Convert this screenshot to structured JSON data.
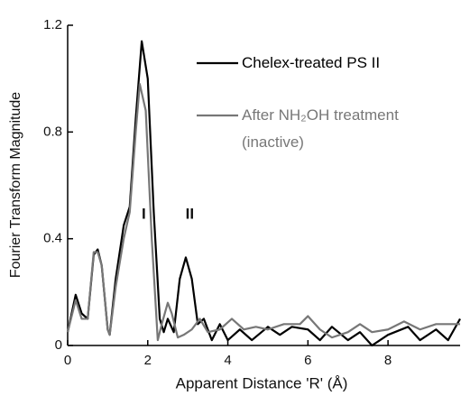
{
  "chart_data": {
    "type": "line",
    "x_label": "Apparent Distance 'R' (Å)",
    "y_label": "Fourier Transform Magnitude",
    "xlim": [
      0,
      9.8
    ],
    "ylim": [
      0,
      1.2
    ],
    "xticks": [
      0,
      2,
      4,
      6,
      8
    ],
    "yticks": [
      0,
      0.4,
      0.8,
      1.2
    ],
    "annotations": [
      "I",
      "II"
    ],
    "series": [
      {
        "name": "Chelex-treated PS II",
        "color": "#000000",
        "x": [
          0,
          0.2,
          0.35,
          0.5,
          0.65,
          0.75,
          0.85,
          1.0,
          1.05,
          1.2,
          1.4,
          1.55,
          1.7,
          1.85,
          2.0,
          2.15,
          2.3,
          2.4,
          2.5,
          2.65,
          2.8,
          2.95,
          3.1,
          3.25,
          3.4,
          3.6,
          3.8,
          4.0,
          4.3,
          4.6,
          5.0,
          5.3,
          5.6,
          6.0,
          6.3,
          6.6,
          7.0,
          7.3,
          7.6,
          8.0,
          8.5,
          8.8,
          9.2,
          9.5,
          9.8
        ],
        "values": [
          0.05,
          0.19,
          0.12,
          0.1,
          0.34,
          0.36,
          0.3,
          0.06,
          0.04,
          0.25,
          0.45,
          0.52,
          0.85,
          1.14,
          1.0,
          0.5,
          0.1,
          0.05,
          0.1,
          0.05,
          0.25,
          0.33,
          0.25,
          0.08,
          0.1,
          0.02,
          0.08,
          0.02,
          0.06,
          0.02,
          0.07,
          0.04,
          0.07,
          0.06,
          0.02,
          0.07,
          0.02,
          0.05,
          0.0,
          0.04,
          0.07,
          0.02,
          0.06,
          0.02,
          0.1
        ]
      },
      {
        "name": "After NH₂OH treatment (inactive)",
        "color": "#777777",
        "x": [
          0,
          0.2,
          0.35,
          0.5,
          0.65,
          0.75,
          0.85,
          1.0,
          1.05,
          1.2,
          1.4,
          1.55,
          1.7,
          1.8,
          1.95,
          2.1,
          2.25,
          2.35,
          2.5,
          2.6,
          2.75,
          2.9,
          3.1,
          3.3,
          3.5,
          3.8,
          4.1,
          4.4,
          4.7,
          5.0,
          5.4,
          5.8,
          6.0,
          6.3,
          6.6,
          7.0,
          7.3,
          7.6,
          8.0,
          8.4,
          8.8,
          9.2,
          9.8
        ],
        "values": [
          0.05,
          0.17,
          0.1,
          0.1,
          0.35,
          0.35,
          0.3,
          0.06,
          0.04,
          0.22,
          0.4,
          0.5,
          0.8,
          0.98,
          0.88,
          0.4,
          0.02,
          0.08,
          0.16,
          0.12,
          0.03,
          0.04,
          0.06,
          0.1,
          0.05,
          0.06,
          0.1,
          0.06,
          0.07,
          0.06,
          0.08,
          0.08,
          0.11,
          0.06,
          0.03,
          0.05,
          0.08,
          0.05,
          0.06,
          0.09,
          0.06,
          0.08,
          0.08
        ]
      }
    ]
  }
}
